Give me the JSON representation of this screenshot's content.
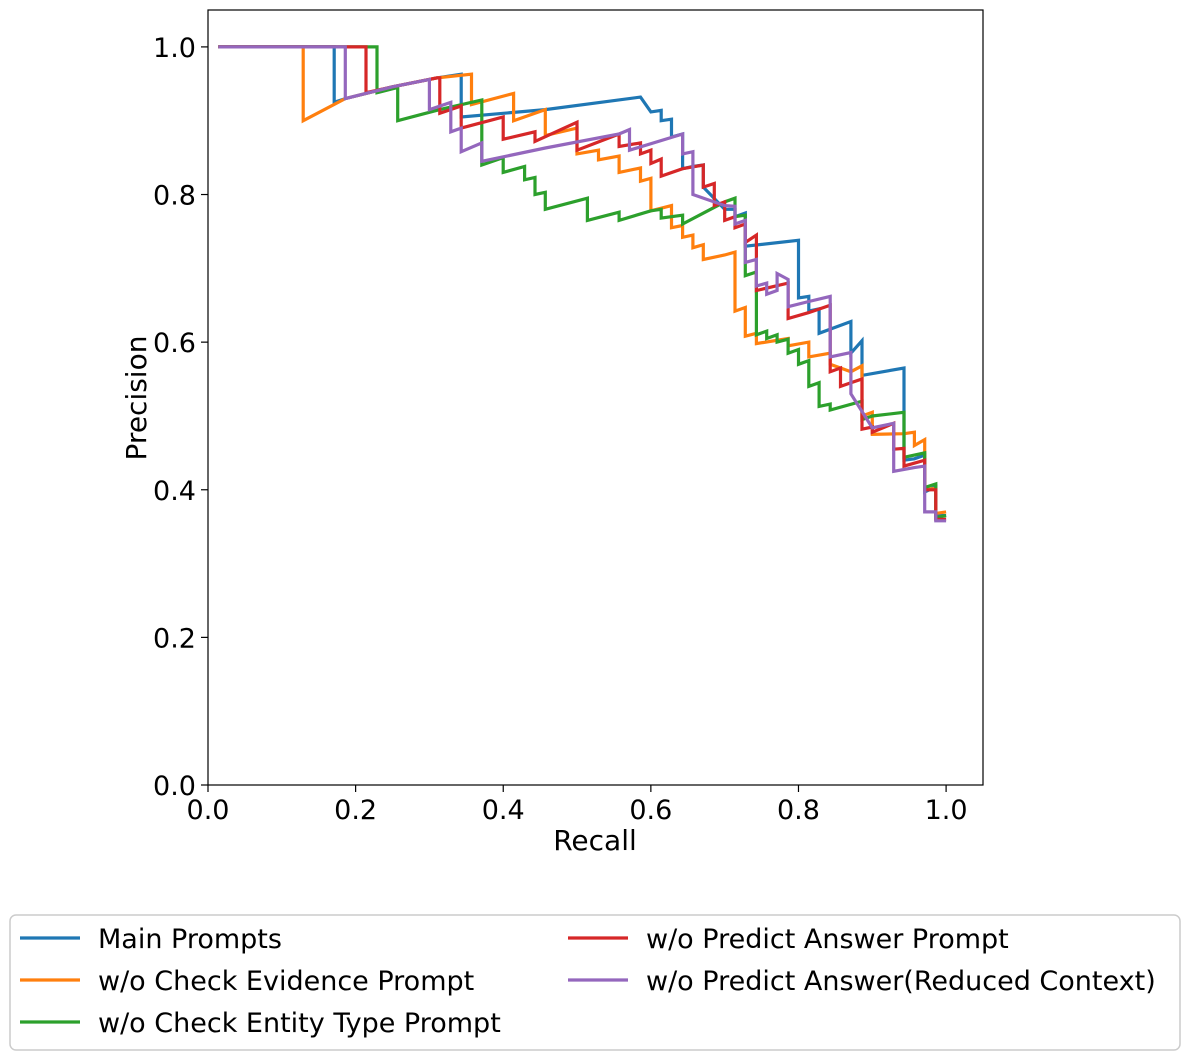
{
  "chart_data": {
    "type": "line",
    "xlabel": "Recall",
    "ylabel": "Precision",
    "xlim": [
      0.0,
      1.05
    ],
    "ylim": [
      0.0,
      1.05
    ],
    "xticks": [
      "0.0",
      "0.2",
      "0.4",
      "0.6",
      "0.8",
      "1.0"
    ],
    "yticks": [
      "0.0",
      "0.2",
      "0.4",
      "0.6",
      "0.8",
      "1.0"
    ],
    "grid": false,
    "legend_position": "bottom",
    "series": [
      {
        "name": "Main Prompts",
        "color": "#1f77b4",
        "points": [
          [
            0.014,
            1.0
          ],
          [
            0.171,
            1.0
          ],
          [
            0.171,
            0.925
          ],
          [
            0.186,
            0.93
          ],
          [
            0.25,
            0.946
          ],
          [
            0.31,
            0.958
          ],
          [
            0.343,
            0.963
          ],
          [
            0.343,
            0.905
          ],
          [
            0.457,
            0.915
          ],
          [
            0.586,
            0.932
          ],
          [
            0.6,
            0.912
          ],
          [
            0.614,
            0.914
          ],
          [
            0.614,
            0.9
          ],
          [
            0.628,
            0.902
          ],
          [
            0.628,
            0.878
          ],
          [
            0.643,
            0.882
          ],
          [
            0.643,
            0.835
          ],
          [
            0.657,
            0.838
          ],
          [
            0.671,
            0.84
          ],
          [
            0.671,
            0.81
          ],
          [
            0.7,
            0.78
          ],
          [
            0.714,
            0.78
          ],
          [
            0.714,
            0.77
          ],
          [
            0.728,
            0.775
          ],
          [
            0.728,
            0.73
          ],
          [
            0.8,
            0.738
          ],
          [
            0.8,
            0.66
          ],
          [
            0.814,
            0.662
          ],
          [
            0.814,
            0.642
          ],
          [
            0.828,
            0.645
          ],
          [
            0.828,
            0.612
          ],
          [
            0.871,
            0.628
          ],
          [
            0.871,
            0.585
          ],
          [
            0.886,
            0.602
          ],
          [
            0.886,
            0.555
          ],
          [
            0.943,
            0.565
          ],
          [
            0.943,
            0.44
          ],
          [
            0.957,
            0.442
          ],
          [
            0.971,
            0.447
          ],
          [
            0.971,
            0.397
          ],
          [
            0.986,
            0.404
          ],
          [
            0.986,
            0.365
          ],
          [
            1.0,
            0.365
          ]
        ]
      },
      {
        "name": "w/o Check Evidence Prompt",
        "color": "#ff7f0e",
        "points": [
          [
            0.014,
            1.0
          ],
          [
            0.129,
            1.0
          ],
          [
            0.129,
            0.9
          ],
          [
            0.186,
            0.93
          ],
          [
            0.25,
            0.946
          ],
          [
            0.31,
            0.958
          ],
          [
            0.357,
            0.963
          ],
          [
            0.357,
            0.922
          ],
          [
            0.414,
            0.937
          ],
          [
            0.414,
            0.9
          ],
          [
            0.457,
            0.915
          ],
          [
            0.457,
            0.88
          ],
          [
            0.5,
            0.89
          ],
          [
            0.5,
            0.855
          ],
          [
            0.529,
            0.86
          ],
          [
            0.529,
            0.847
          ],
          [
            0.557,
            0.852
          ],
          [
            0.557,
            0.83
          ],
          [
            0.586,
            0.836
          ],
          [
            0.586,
            0.818
          ],
          [
            0.6,
            0.822
          ],
          [
            0.6,
            0.778
          ],
          [
            0.628,
            0.785
          ],
          [
            0.628,
            0.755
          ],
          [
            0.643,
            0.758
          ],
          [
            0.643,
            0.742
          ],
          [
            0.657,
            0.745
          ],
          [
            0.657,
            0.728
          ],
          [
            0.671,
            0.732
          ],
          [
            0.671,
            0.712
          ],
          [
            0.7,
            0.718
          ],
          [
            0.714,
            0.722
          ],
          [
            0.714,
            0.642
          ],
          [
            0.728,
            0.647
          ],
          [
            0.728,
            0.608
          ],
          [
            0.743,
            0.612
          ],
          [
            0.743,
            0.598
          ],
          [
            0.786,
            0.605
          ],
          [
            0.786,
            0.595
          ],
          [
            0.814,
            0.6
          ],
          [
            0.814,
            0.58
          ],
          [
            0.843,
            0.585
          ],
          [
            0.843,
            0.57
          ],
          [
            0.871,
            0.56
          ],
          [
            0.886,
            0.568
          ],
          [
            0.886,
            0.5
          ],
          [
            0.9,
            0.505
          ],
          [
            0.9,
            0.475
          ],
          [
            0.943,
            0.476
          ],
          [
            0.957,
            0.478
          ],
          [
            0.957,
            0.46
          ],
          [
            0.971,
            0.468
          ],
          [
            0.971,
            0.4
          ],
          [
            0.986,
            0.402
          ],
          [
            0.986,
            0.368
          ],
          [
            1.0,
            0.37
          ]
        ]
      },
      {
        "name": "w/o Check Entity Type Prompt",
        "color": "#2ca02c",
        "points": [
          [
            0.014,
            1.0
          ],
          [
            0.229,
            1.0
          ],
          [
            0.229,
            0.938
          ],
          [
            0.257,
            0.945
          ],
          [
            0.257,
            0.9
          ],
          [
            0.314,
            0.915
          ],
          [
            0.371,
            0.928
          ],
          [
            0.371,
            0.84
          ],
          [
            0.4,
            0.85
          ],
          [
            0.4,
            0.83
          ],
          [
            0.429,
            0.838
          ],
          [
            0.429,
            0.82
          ],
          [
            0.443,
            0.823
          ],
          [
            0.443,
            0.8
          ],
          [
            0.457,
            0.803
          ],
          [
            0.457,
            0.78
          ],
          [
            0.514,
            0.795
          ],
          [
            0.514,
            0.765
          ],
          [
            0.557,
            0.776
          ],
          [
            0.557,
            0.765
          ],
          [
            0.6,
            0.778
          ],
          [
            0.614,
            0.78
          ],
          [
            0.614,
            0.768
          ],
          [
            0.643,
            0.772
          ],
          [
            0.643,
            0.76
          ],
          [
            0.7,
            0.79
          ],
          [
            0.714,
            0.795
          ],
          [
            0.714,
            0.77
          ],
          [
            0.728,
            0.772
          ],
          [
            0.728,
            0.69
          ],
          [
            0.743,
            0.695
          ],
          [
            0.743,
            0.61
          ],
          [
            0.757,
            0.615
          ],
          [
            0.757,
            0.605
          ],
          [
            0.771,
            0.61
          ],
          [
            0.771,
            0.6
          ],
          [
            0.786,
            0.604
          ],
          [
            0.786,
            0.585
          ],
          [
            0.8,
            0.59
          ],
          [
            0.8,
            0.57
          ],
          [
            0.814,
            0.575
          ],
          [
            0.814,
            0.54
          ],
          [
            0.828,
            0.545
          ],
          [
            0.828,
            0.513
          ],
          [
            0.843,
            0.516
          ],
          [
            0.843,
            0.508
          ],
          [
            0.886,
            0.52
          ],
          [
            0.886,
            0.495
          ],
          [
            0.9,
            0.5
          ],
          [
            0.943,
            0.505
          ],
          [
            0.943,
            0.444
          ],
          [
            0.957,
            0.447
          ],
          [
            0.971,
            0.45
          ],
          [
            0.971,
            0.403
          ],
          [
            0.986,
            0.408
          ],
          [
            0.986,
            0.362
          ],
          [
            1.0,
            0.365
          ]
        ]
      },
      {
        "name": "w/o Predict Answer Prompt",
        "color": "#d62728",
        "points": [
          [
            0.014,
            1.0
          ],
          [
            0.214,
            1.0
          ],
          [
            0.214,
            0.938
          ],
          [
            0.25,
            0.946
          ],
          [
            0.31,
            0.958
          ],
          [
            0.314,
            0.958
          ],
          [
            0.314,
            0.91
          ],
          [
            0.343,
            0.92
          ],
          [
            0.343,
            0.89
          ],
          [
            0.4,
            0.905
          ],
          [
            0.4,
            0.875
          ],
          [
            0.443,
            0.885
          ],
          [
            0.443,
            0.872
          ],
          [
            0.5,
            0.898
          ],
          [
            0.5,
            0.86
          ],
          [
            0.557,
            0.882
          ],
          [
            0.557,
            0.865
          ],
          [
            0.586,
            0.87
          ],
          [
            0.586,
            0.855
          ],
          [
            0.6,
            0.86
          ],
          [
            0.6,
            0.842
          ],
          [
            0.614,
            0.848
          ],
          [
            0.614,
            0.825
          ],
          [
            0.643,
            0.835
          ],
          [
            0.671,
            0.84
          ],
          [
            0.671,
            0.81
          ],
          [
            0.686,
            0.815
          ],
          [
            0.686,
            0.785
          ],
          [
            0.7,
            0.79
          ],
          [
            0.7,
            0.765
          ],
          [
            0.714,
            0.77
          ],
          [
            0.714,
            0.755
          ],
          [
            0.728,
            0.76
          ],
          [
            0.728,
            0.735
          ],
          [
            0.743,
            0.745
          ],
          [
            0.743,
            0.67
          ],
          [
            0.786,
            0.68
          ],
          [
            0.786,
            0.632
          ],
          [
            0.814,
            0.64
          ],
          [
            0.843,
            0.65
          ],
          [
            0.843,
            0.56
          ],
          [
            0.857,
            0.565
          ],
          [
            0.857,
            0.54
          ],
          [
            0.871,
            0.545
          ],
          [
            0.886,
            0.55
          ],
          [
            0.886,
            0.482
          ],
          [
            0.9,
            0.485
          ],
          [
            0.9,
            0.478
          ],
          [
            0.929,
            0.49
          ],
          [
            0.929,
            0.455
          ],
          [
            0.943,
            0.456
          ],
          [
            0.943,
            0.432
          ],
          [
            0.971,
            0.44
          ],
          [
            0.971,
            0.4
          ],
          [
            0.986,
            0.4
          ],
          [
            0.986,
            0.36
          ],
          [
            1.0,
            0.36
          ]
        ]
      },
      {
        "name": "w/o Predict Answer(Reduced Context)",
        "color": "#9467bd",
        "points": [
          [
            0.014,
            1.0
          ],
          [
            0.186,
            1.0
          ],
          [
            0.186,
            0.93
          ],
          [
            0.25,
            0.946
          ],
          [
            0.3,
            0.956
          ],
          [
            0.3,
            0.915
          ],
          [
            0.329,
            0.925
          ],
          [
            0.329,
            0.885
          ],
          [
            0.343,
            0.89
          ],
          [
            0.343,
            0.858
          ],
          [
            0.371,
            0.87
          ],
          [
            0.371,
            0.845
          ],
          [
            0.457,
            0.863
          ],
          [
            0.557,
            0.882
          ],
          [
            0.571,
            0.888
          ],
          [
            0.571,
            0.86
          ],
          [
            0.643,
            0.882
          ],
          [
            0.643,
            0.855
          ],
          [
            0.657,
            0.858
          ],
          [
            0.657,
            0.8
          ],
          [
            0.7,
            0.785
          ],
          [
            0.714,
            0.784
          ],
          [
            0.714,
            0.76
          ],
          [
            0.728,
            0.765
          ],
          [
            0.728,
            0.708
          ],
          [
            0.743,
            0.712
          ],
          [
            0.743,
            0.676
          ],
          [
            0.757,
            0.68
          ],
          [
            0.757,
            0.665
          ],
          [
            0.771,
            0.67
          ],
          [
            0.771,
            0.693
          ],
          [
            0.786,
            0.685
          ],
          [
            0.786,
            0.648
          ],
          [
            0.814,
            0.655
          ],
          [
            0.843,
            0.662
          ],
          [
            0.843,
            0.58
          ],
          [
            0.871,
            0.586
          ],
          [
            0.871,
            0.53
          ],
          [
            0.9,
            0.484
          ],
          [
            0.929,
            0.49
          ],
          [
            0.929,
            0.425
          ],
          [
            0.957,
            0.43
          ],
          [
            0.971,
            0.432
          ],
          [
            0.971,
            0.37
          ],
          [
            0.986,
            0.37
          ],
          [
            0.986,
            0.358
          ],
          [
            1.0,
            0.358
          ]
        ]
      }
    ]
  }
}
